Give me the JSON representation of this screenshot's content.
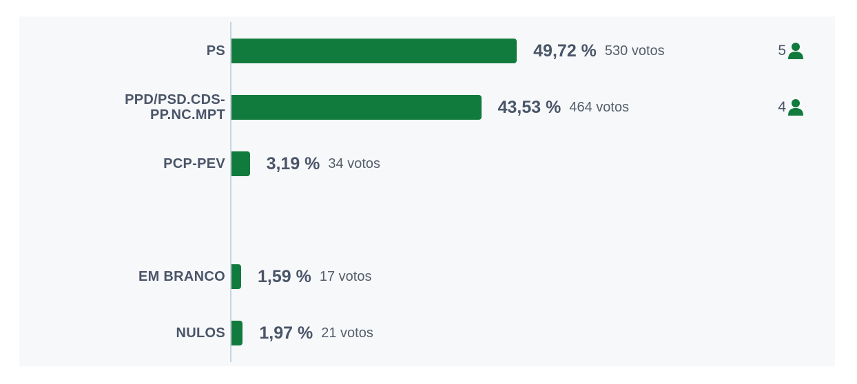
{
  "chart_data": {
    "type": "bar",
    "orientation": "horizontal",
    "color": "#117a3d",
    "categories": [
      "PS",
      "PPD/PSD.CDS-PP.NC.MPT",
      "PCP-PEV",
      "EM BRANCO",
      "NULOS"
    ],
    "values": [
      49.72,
      43.53,
      3.19,
      1.59,
      1.97
    ],
    "value_labels": [
      "49,72 %",
      "43,53 %",
      "3,19 %",
      "1,59 %",
      "1,97 %"
    ],
    "votes": [
      530,
      464,
      34,
      17,
      21
    ],
    "votes_labels": [
      "530 votos",
      "464 votos",
      "34 votos",
      "17 votos",
      "21 votos"
    ],
    "seats": [
      5,
      4,
      null,
      null,
      null
    ]
  }
}
